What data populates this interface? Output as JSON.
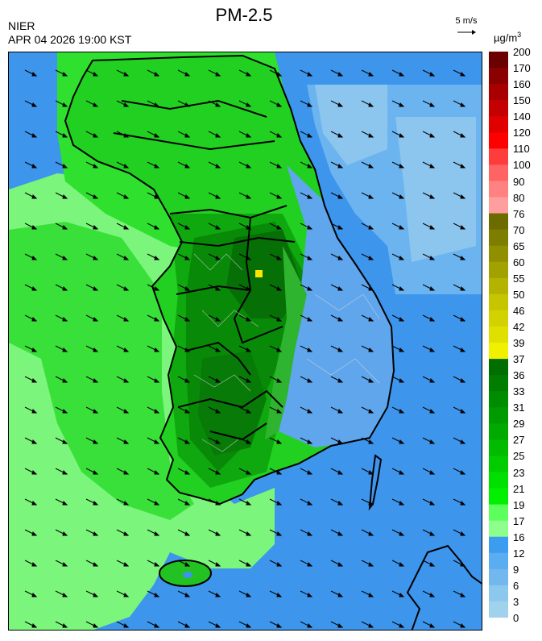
{
  "header": {
    "title": "PM-2.5",
    "organization": "NIER",
    "datetime": "APR 04 2026 19:00 KST",
    "wind_reference": "5 m/s",
    "unit_base": "µg/m",
    "unit_exp": "3"
  },
  "legend": {
    "ticks": [
      "200",
      "170",
      "160",
      "150",
      "140",
      "120",
      "110",
      "100",
      "90",
      "80",
      "76",
      "70",
      "65",
      "60",
      "55",
      "50",
      "46",
      "42",
      "39",
      "37",
      "36",
      "33",
      "31",
      "29",
      "27",
      "25",
      "23",
      "21",
      "19",
      "17",
      "16",
      "12",
      "9",
      "6",
      "3",
      "0"
    ],
    "colors": [
      "#6b0000",
      "#8b0000",
      "#a80000",
      "#c40000",
      "#e00000",
      "#ff0000",
      "#ff3c3c",
      "#ff6464",
      "#ff8282",
      "#ff9e9e",
      "#6b6b00",
      "#7d7d00",
      "#8f8f00",
      "#a1a100",
      "#b3b300",
      "#c6c600",
      "#d2d200",
      "#e0e000",
      "#f0f000",
      "#006e00",
      "#007d00",
      "#008c00",
      "#009b00",
      "#00aa00",
      "#00bb00",
      "#00cc00",
      "#00e000",
      "#00f000",
      "#5cff5c",
      "#8cff8c",
      "#3c9cf0",
      "#5aadf0",
      "#72b8ee",
      "#8cc8ee",
      "#a0d2ec"
    ]
  }
}
